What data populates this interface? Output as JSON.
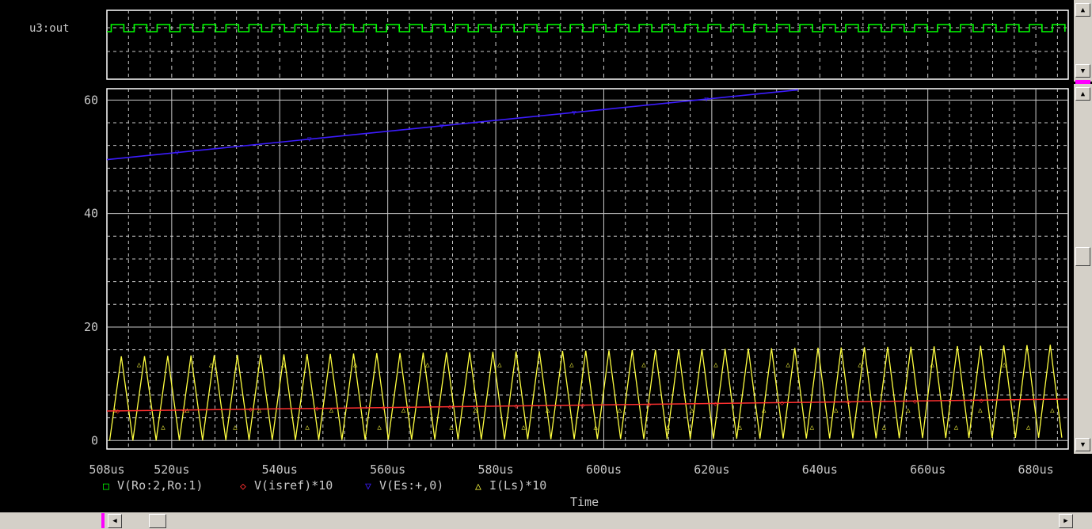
{
  "colors": {
    "background": "#000000",
    "grid": "#c8c8c8",
    "frame": "#ffffff",
    "text": "#c8c8c8",
    "digital": "#00ff00",
    "isref": "#ff3030",
    "es": "#3c1cff",
    "ls": "#ffff40",
    "legend_ro": "#00ff00"
  },
  "icons": {
    "scroll_up": "triangle-up-icon",
    "scroll_down": "triangle-down-icon",
    "scroll_left": "triangle-left-icon",
    "scroll_right": "triangle-right-icon"
  },
  "chart_data": [
    {
      "type": "line",
      "subplot": "digital",
      "trace_label": "u3:out",
      "x_unit": "us",
      "signal": "square wave",
      "period": 4.25,
      "xlim": [
        508,
        686
      ]
    },
    {
      "type": "line",
      "subplot": "analog",
      "xlabel": "Time",
      "x_tick_labels": [
        "508us",
        "520us",
        "540us",
        "560us",
        "580us",
        "600us",
        "620us",
        "640us",
        "660us",
        "680us"
      ],
      "x_ticks": [
        508,
        520,
        540,
        560,
        580,
        600,
        620,
        640,
        660,
        680
      ],
      "xlim": [
        508,
        686
      ],
      "y_tick_labels": [
        "0",
        "20",
        "40",
        "60"
      ],
      "y_ticks": [
        0,
        20,
        40,
        60
      ],
      "ylim": [
        -1.5,
        62
      ],
      "grid": true,
      "legend": [
        {
          "marker": "□",
          "label": "V(Ro:2,Ro:1)"
        },
        {
          "marker": "◇",
          "label": "V(isref)*10"
        },
        {
          "marker": "▽",
          "label": "V(Es:+,0)"
        },
        {
          "marker": "△",
          "label": "I(Ls)*10"
        }
      ],
      "series": [
        {
          "name": "V(Es:+,0)",
          "x": [
            508,
            636
          ],
          "y": [
            49.5,
            61.8
          ]
        },
        {
          "name": "V(isref)*10",
          "x": [
            508,
            686
          ],
          "y": [
            5.2,
            7.3
          ]
        },
        {
          "name": "I(Ls)*10",
          "waveform": "triangle",
          "period": 4.3,
          "x": [
            508,
            686
          ],
          "min": [
            0,
            0.5
          ],
          "max": [
            14.8,
            16.9
          ]
        }
      ]
    }
  ]
}
